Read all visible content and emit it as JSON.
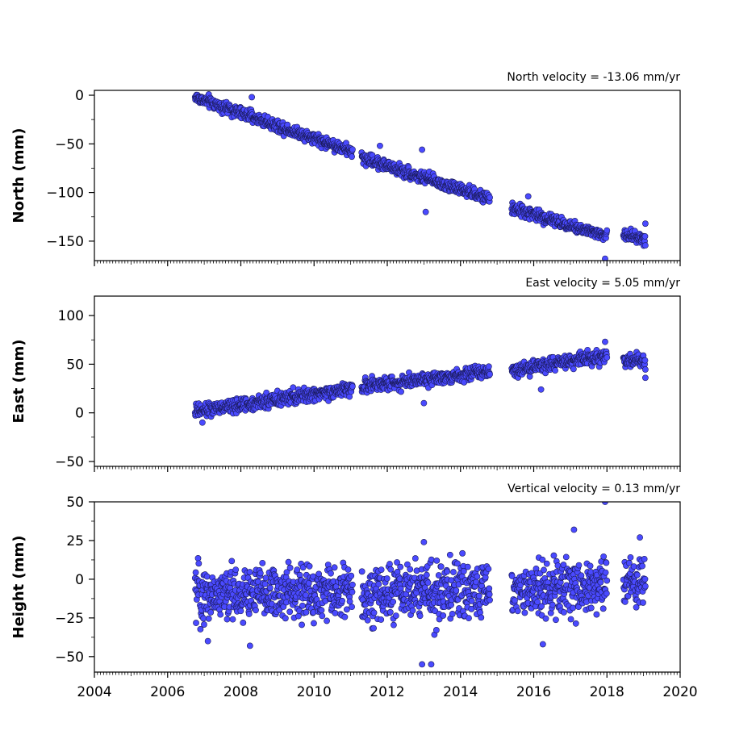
{
  "chart_data": [
    {
      "type": "scatter",
      "panel": "north",
      "title": "North velocity = -13.06 mm/yr",
      "ylabel": "North (mm)",
      "xlabel": "",
      "xlim": [
        2004,
        2020
      ],
      "ylim": [
        -170,
        5
      ],
      "yticks": [
        "0",
        "−50",
        "−100",
        "−150"
      ],
      "xtick_labels_shown": false,
      "marker_color": "#4a4aff",
      "marker_edge": "#1a1a5a",
      "segments": [
        {
          "start": 2006.75,
          "end": 2011.05,
          "y_start": -2,
          "y_end": -58,
          "noise": 3
        },
        {
          "start": 2011.3,
          "end": 2014.8,
          "y_start": -64,
          "y_end": -107,
          "noise": 3
        },
        {
          "start": 2015.4,
          "end": 2018.0,
          "y_start": -116,
          "y_end": -145,
          "noise": 3
        },
        {
          "start": 2018.45,
          "end": 2019.05,
          "y_start": -143,
          "y_end": -148,
          "noise": 3
        }
      ],
      "notable_points": [
        {
          "x": 2008.3,
          "y": -2
        },
        {
          "x": 2011.8,
          "y": -52
        },
        {
          "x": 2012.95,
          "y": -56
        },
        {
          "x": 2013.05,
          "y": -120
        },
        {
          "x": 2015.85,
          "y": -104
        },
        {
          "x": 2017.95,
          "y": -168
        },
        {
          "x": 2019.05,
          "y": -132
        }
      ]
    },
    {
      "type": "scatter",
      "panel": "east",
      "title": "East velocity = 5.05 mm/yr",
      "ylabel": "East (mm)",
      "xlabel": "",
      "xlim": [
        2004,
        2020
      ],
      "ylim": [
        -55,
        120
      ],
      "yticks": [
        "100",
        "50",
        "0",
        "−50"
      ],
      "xtick_labels_shown": false,
      "marker_color": "#4a4aff",
      "marker_edge": "#1a1a5a",
      "segments": [
        {
          "start": 2006.75,
          "end": 2011.05,
          "y_start": 1,
          "y_end": 25,
          "noise": 3.5
        },
        {
          "start": 2011.3,
          "end": 2014.8,
          "y_start": 27,
          "y_end": 43,
          "noise": 3.5
        },
        {
          "start": 2015.4,
          "end": 2018.0,
          "y_start": 44,
          "y_end": 59,
          "noise": 3.5
        },
        {
          "start": 2018.45,
          "end": 2019.05,
          "y_start": 54,
          "y_end": 52,
          "noise": 3.5
        }
      ],
      "notable_points": [
        {
          "x": 2006.95,
          "y": -10
        },
        {
          "x": 2013.0,
          "y": 10
        },
        {
          "x": 2016.2,
          "y": 24
        },
        {
          "x": 2017.95,
          "y": 73
        },
        {
          "x": 2019.05,
          "y": 36
        }
      ]
    },
    {
      "type": "scatter",
      "panel": "height",
      "title": "Vertical velocity = 0.13 mm/yr",
      "ylabel": "Height (mm)",
      "xlabel": "",
      "xlim": [
        2004,
        2020
      ],
      "ylim": [
        -60,
        50
      ],
      "yticks": [
        "50",
        "25",
        "0",
        "−25",
        "−50"
      ],
      "xticks": [
        "2004",
        "2006",
        "2008",
        "2010",
        "2012",
        "2014",
        "2016",
        "2018",
        "2020"
      ],
      "xtick_labels_shown": true,
      "marker_color": "#4a4aff",
      "marker_edge": "#1a1a5a",
      "segments": [
        {
          "start": 2006.75,
          "end": 2011.05,
          "y_start": -10,
          "y_end": -8,
          "noise": 9
        },
        {
          "start": 2011.3,
          "end": 2014.8,
          "y_start": -10,
          "y_end": -6,
          "noise": 9
        },
        {
          "start": 2015.4,
          "end": 2018.0,
          "y_start": -8,
          "y_end": -3,
          "noise": 9
        },
        {
          "start": 2018.45,
          "end": 2019.05,
          "y_start": -2,
          "y_end": -1,
          "noise": 8
        }
      ],
      "notable_points": [
        {
          "x": 2007.1,
          "y": -40
        },
        {
          "x": 2008.25,
          "y": -43
        },
        {
          "x": 2012.95,
          "y": -55
        },
        {
          "x": 2013.2,
          "y": -55
        },
        {
          "x": 2013.0,
          "y": 24
        },
        {
          "x": 2016.25,
          "y": -42
        },
        {
          "x": 2017.1,
          "y": 32
        },
        {
          "x": 2017.95,
          "y": 50
        },
        {
          "x": 2018.9,
          "y": 27
        }
      ]
    }
  ]
}
